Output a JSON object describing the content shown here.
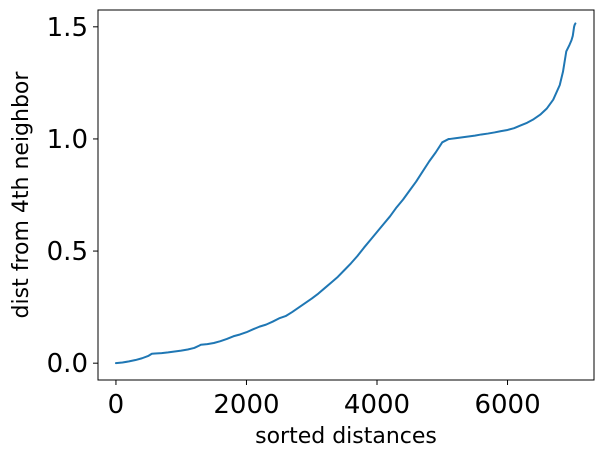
{
  "chart_data": {
    "type": "line",
    "title": "",
    "xlabel": "sorted distances",
    "ylabel": "dist from 4th neighbor",
    "xlim": [
      -275,
      7325
    ],
    "ylim": [
      -0.075,
      1.575
    ],
    "grid": false,
    "x_ticks": [
      0,
      2000,
      4000,
      6000
    ],
    "x_tick_labels": [
      "0",
      "2000",
      "4000",
      "6000"
    ],
    "y_ticks": [
      0.0,
      0.5,
      1.0,
      1.5
    ],
    "y_tick_labels": [
      "0.0",
      "0.5",
      "1.0",
      "1.5"
    ],
    "colors": {
      "line": "#1f77b4"
    },
    "series": [
      {
        "x": [
          0,
          100,
          200,
          300,
          400,
          500,
          550,
          600,
          700,
          800,
          900,
          1000,
          1100,
          1200,
          1280,
          1300,
          1400,
          1500,
          1600,
          1700,
          1800,
          1900,
          2000,
          2100,
          2200,
          2300,
          2400,
          2500,
          2600,
          2700,
          2800,
          2900,
          3000,
          3100,
          3200,
          3300,
          3400,
          3500,
          3600,
          3700,
          3800,
          3900,
          4000,
          4100,
          4200,
          4300,
          4400,
          4500,
          4600,
          4700,
          4800,
          4900,
          5000,
          5100,
          5120,
          5200,
          5300,
          5400,
          5500,
          5600,
          5700,
          5800,
          5900,
          6000,
          6100,
          6200,
          6300,
          6400,
          6500,
          6600,
          6700,
          6800,
          6850,
          6900,
          6950,
          6980,
          7000,
          7010,
          7020,
          7030,
          7040
        ],
        "y": [
          0.0,
          0.003,
          0.008,
          0.014,
          0.022,
          0.033,
          0.042,
          0.043,
          0.045,
          0.048,
          0.052,
          0.056,
          0.061,
          0.068,
          0.079,
          0.082,
          0.085,
          0.09,
          0.098,
          0.108,
          0.12,
          0.128,
          0.138,
          0.151,
          0.163,
          0.172,
          0.185,
          0.2,
          0.21,
          0.228,
          0.248,
          0.268,
          0.288,
          0.31,
          0.335,
          0.36,
          0.385,
          0.415,
          0.445,
          0.478,
          0.515,
          0.55,
          0.585,
          0.62,
          0.655,
          0.695,
          0.73,
          0.77,
          0.81,
          0.855,
          0.9,
          0.94,
          0.985,
          1.0,
          1.0,
          1.003,
          1.007,
          1.011,
          1.015,
          1.02,
          1.024,
          1.029,
          1.035,
          1.04,
          1.048,
          1.06,
          1.072,
          1.088,
          1.108,
          1.135,
          1.175,
          1.24,
          1.3,
          1.39,
          1.42,
          1.44,
          1.46,
          1.48,
          1.5,
          1.51,
          1.515
        ]
      }
    ]
  }
}
